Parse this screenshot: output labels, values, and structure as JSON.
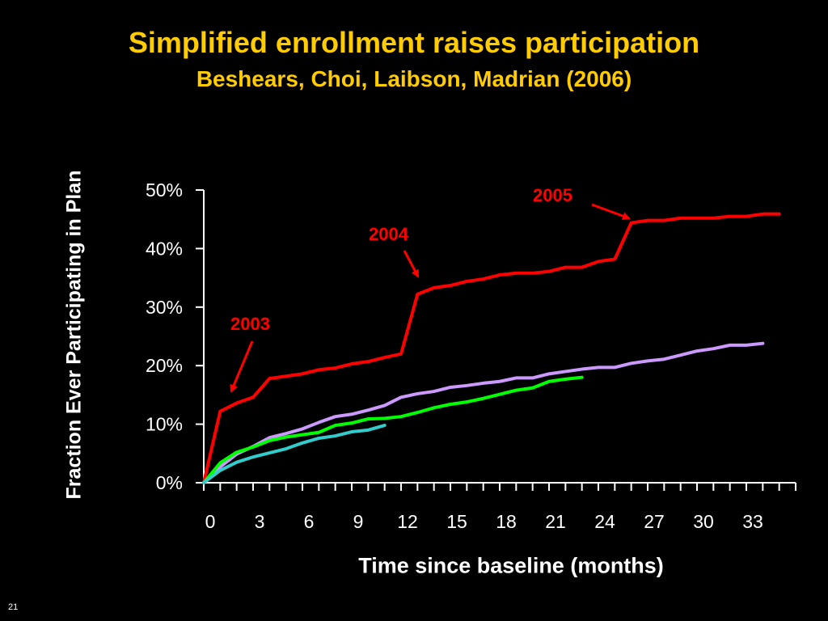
{
  "slide": {
    "title": "Simplified enrollment raises participation",
    "subtitle": "Beshears, Choi, Laibson, Madrian (2006)",
    "number": "21"
  },
  "chart_data": {
    "type": "line",
    "title": "Simplified enrollment raises participation",
    "subtitle": "Beshears, Choi, Laibson, Madrian (2006)",
    "xlabel": "Time since baseline (months)",
    "ylabel": "Fraction Ever Participating in Plan",
    "xlim": [
      0,
      36
    ],
    "ylim": [
      0,
      50
    ],
    "x_ticks": [
      0,
      3,
      6,
      9,
      12,
      15,
      18,
      21,
      24,
      27,
      30,
      33
    ],
    "y_ticks": [
      0,
      10,
      20,
      30,
      40,
      50
    ],
    "y_tick_labels": [
      "0%",
      "10%",
      "20%",
      "30%",
      "40%",
      "50%"
    ],
    "grid": false,
    "series": [
      {
        "color": "#FF0000",
        "x": [
          0,
          1,
          2,
          3,
          4,
          5,
          6,
          7,
          8,
          9,
          10,
          11,
          12,
          13,
          14,
          15,
          16,
          17,
          18,
          19,
          20,
          21,
          22,
          23,
          24,
          25,
          26,
          27,
          28,
          29,
          30,
          31,
          32,
          33,
          34,
          35
        ],
        "y": [
          0,
          12.2,
          13.6,
          14.6,
          17.8,
          18.2,
          18.6,
          19.3,
          19.6,
          20.3,
          20.7,
          21.4,
          22.0,
          32.2,
          33.3,
          33.7,
          34.4,
          34.8,
          35.5,
          35.8,
          35.8,
          36.1,
          36.8,
          36.8,
          37.8,
          38.2,
          44.4,
          44.8,
          44.8,
          45.2,
          45.2,
          45.2,
          45.5,
          45.5,
          45.9,
          45.9
        ]
      },
      {
        "color": "#CC99FF",
        "x": [
          0,
          1,
          2,
          3,
          4,
          5,
          6,
          7,
          8,
          9,
          10,
          11,
          12,
          13,
          14,
          15,
          16,
          17,
          18,
          19,
          20,
          21,
          22,
          23,
          24,
          25,
          26,
          27,
          28,
          29,
          30,
          31,
          32,
          33,
          34
        ],
        "y": [
          0,
          2.7,
          4.9,
          6.2,
          7.7,
          8.4,
          9.2,
          10.3,
          11.3,
          11.7,
          12.4,
          13.2,
          14.6,
          15.2,
          15.6,
          16.3,
          16.6,
          17.0,
          17.3,
          17.9,
          17.9,
          18.6,
          19.0,
          19.4,
          19.7,
          19.7,
          20.4,
          20.8,
          21.1,
          21.8,
          22.5,
          22.9,
          23.5,
          23.5,
          23.8
        ]
      },
      {
        "color": "#00FF00",
        "x": [
          0,
          1,
          2,
          3,
          4,
          5,
          6,
          7,
          8,
          9,
          10,
          11,
          12,
          13,
          14,
          15,
          16,
          17,
          18,
          19,
          20,
          21,
          22,
          23
        ],
        "y": [
          0,
          3.4,
          5.2,
          6.1,
          7.2,
          7.8,
          8.2,
          8.6,
          9.8,
          10.2,
          10.9,
          11.0,
          11.3,
          12.0,
          12.8,
          13.4,
          13.8,
          14.4,
          15.1,
          15.8,
          16.2,
          17.3,
          17.7,
          18.0
        ]
      },
      {
        "color": "#33CCCC",
        "x": [
          0,
          1,
          2,
          3,
          4,
          5,
          6,
          7,
          8,
          9,
          10,
          11
        ],
        "y": [
          0,
          2.1,
          3.5,
          4.4,
          5.1,
          5.8,
          6.8,
          7.6,
          8.0,
          8.7,
          9.0,
          9.8
        ]
      }
    ],
    "annotations": [
      {
        "label": "2003",
        "x": 1.3,
        "y": 15.0,
        "color": "#FF0000"
      },
      {
        "label": "2004",
        "x": 12.8,
        "y": 34.3,
        "color": "#FF0000"
      },
      {
        "label": "2005",
        "x": 25.9,
        "y": 45.7,
        "color": "#FF0000"
      }
    ]
  }
}
